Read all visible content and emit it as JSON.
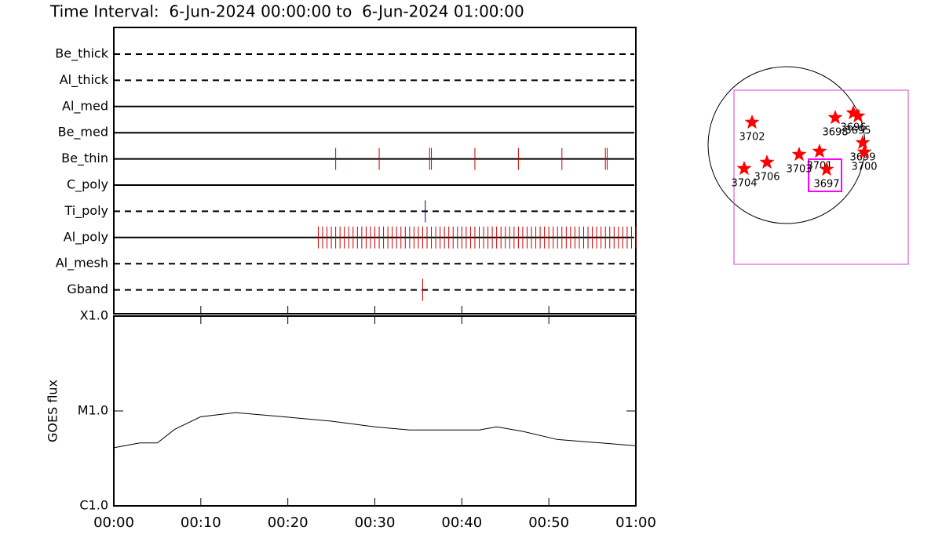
{
  "title": "Time Interval:  6-Jun-2024 00:00:00 to  6-Jun-2024 01:00:00",
  "chart_data": [
    {
      "type": "event",
      "xlim": [
        0,
        60
      ],
      "rows": [
        {
          "name": "Be_thick",
          "style": "dashed",
          "color": "#cc0000",
          "times": []
        },
        {
          "name": "Al_thick",
          "style": "dashed",
          "color": "#cc0000",
          "times": []
        },
        {
          "name": "Al_med",
          "style": "solid",
          "color": "#cc0000",
          "times": []
        },
        {
          "name": "Be_med",
          "style": "solid",
          "color": "#cc0000",
          "times": []
        },
        {
          "name": "Be_thin",
          "style": "solid",
          "color": "#cc0000",
          "times": [
            25.5,
            30.5,
            36.3,
            36.5,
            41.5,
            46.5,
            51.5,
            56.5,
            56.7
          ]
        },
        {
          "name": "C_poly",
          "style": "solid",
          "color": "#cc0000",
          "times": []
        },
        {
          "name": "Ti_poly",
          "style": "dashed",
          "color": "#000080",
          "times": [
            35.8
          ]
        },
        {
          "name": "Al_poly",
          "style": "solid",
          "color": "#cc0000",
          "times": [
            23.5,
            24,
            24.5,
            25,
            25.5,
            26,
            26.5,
            27,
            27.5,
            28,
            28.5,
            29,
            29.5,
            30,
            30.5,
            31,
            31.5,
            32,
            32.5,
            33,
            33.5,
            34,
            34.5,
            35,
            35.5,
            36,
            36.5,
            37,
            37.5,
            38,
            38.5,
            39,
            39.5,
            40,
            40.5,
            41,
            41.5,
            42,
            42.5,
            43,
            43.5,
            44,
            44.5,
            45,
            45.5,
            46,
            46.5,
            47,
            47.5,
            48,
            48.5,
            49,
            49.5,
            50,
            50.5,
            51,
            51.5,
            52,
            52.5,
            53,
            53.5,
            54,
            54.5,
            55,
            55.5,
            56,
            56.5,
            57,
            57.5,
            58,
            58.5,
            59,
            59.5,
            60
          ]
        },
        {
          "name": "Al_mesh",
          "style": "dashed",
          "color": "#cc0000",
          "times": []
        },
        {
          "name": "Gband",
          "style": "dashed",
          "color": "#cc0000",
          "times": [
            35.5
          ]
        }
      ]
    },
    {
      "type": "line",
      "ylabel": "GOES flux",
      "log": true,
      "color": "#000000",
      "xlim": [
        0,
        60
      ],
      "ylim": [
        1e-06,
        0.0001
      ],
      "xticks": [
        {
          "value": 0,
          "label": "00:00"
        },
        {
          "value": 10,
          "label": "00:10"
        },
        {
          "value": 20,
          "label": "00:20"
        },
        {
          "value": 30,
          "label": "00:30"
        },
        {
          "value": 40,
          "label": "00:40"
        },
        {
          "value": 50,
          "label": "00:50"
        },
        {
          "value": 60,
          "label": "01:00"
        }
      ],
      "yticks": [
        {
          "value": 1e-06,
          "label": "C1.0"
        },
        {
          "value": 1e-05,
          "label": "M1.0"
        },
        {
          "value": 0.0001,
          "label": "X1.0"
        }
      ],
      "x": [
        0,
        3,
        5,
        7,
        10,
        14,
        20,
        25,
        30,
        34,
        40,
        42,
        44,
        47,
        51,
        56,
        60
      ],
      "values": [
        4.1e-06,
        4.6e-06,
        4.6e-06,
        6.4e-06,
        8.7e-06,
        9.6e-06,
        8.6e-06,
        7.8e-06,
        6.8e-06,
        6.3e-06,
        6.3e-06,
        6.3e-06,
        6.8e-06,
        6.1e-06,
        5e-06,
        4.6e-06,
        4.3e-06
      ]
    },
    {
      "type": "map",
      "marker_color": "#ff0000",
      "regions": [
        {
          "label": "3702",
          "x": -0.44,
          "y": 0.29
        },
        {
          "label": "3704",
          "x": -0.54,
          "y": -0.3
        },
        {
          "label": "3706",
          "x": -0.25,
          "y": -0.22
        },
        {
          "label": "3703",
          "x": 0.16,
          "y": -0.12
        },
        {
          "label": "3701",
          "x": 0.42,
          "y": -0.08
        },
        {
          "label": "3697",
          "x": 0.51,
          "y": -0.31
        },
        {
          "label": "3698",
          "x": 0.62,
          "y": 0.35
        },
        {
          "label": "3696",
          "x": 0.85,
          "y": 0.41
        },
        {
          "label": "3695",
          "x": 0.91,
          "y": 0.37
        },
        {
          "label": "3699",
          "x": 0.97,
          "y": 0.03
        },
        {
          "label": "3700",
          "x": 0.99,
          "y": -0.09
        }
      ],
      "boxes": [
        {
          "xlim": [
            -0.67,
            1.55
          ],
          "ylim": [
            -1.52,
            0.7
          ],
          "color": "#d040d0"
        },
        {
          "xlim": [
            0.28,
            0.7
          ],
          "ylim": [
            -0.59,
            -0.18
          ],
          "color": "#ff00ff"
        }
      ]
    }
  ]
}
